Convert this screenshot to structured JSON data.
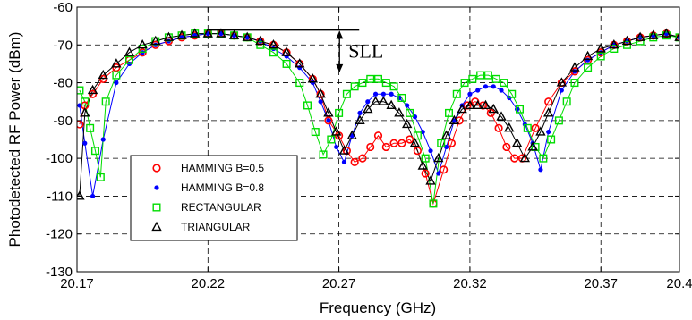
{
  "chart_data": {
    "type": "scatter",
    "title": "",
    "xlabel": "Frequency (GHz)",
    "ylabel": "Photodetected RF Power (dBm)",
    "xlim": [
      20.17,
      20.4
    ],
    "ylim": [
      -130,
      -60
    ],
    "xticks": [
      20.17,
      20.22,
      20.27,
      20.32,
      20.37,
      20.4
    ],
    "xtick_labels": [
      "20.17",
      "20.22",
      "20.27",
      "20.32",
      "20.37",
      "20.4"
    ],
    "yticks": [
      -130,
      -120,
      -110,
      -100,
      -90,
      -80,
      -70,
      -60
    ],
    "ytick_labels": [
      "-130",
      "-120",
      "-110",
      "-100",
      "-90",
      "-80",
      "-70",
      "-60"
    ],
    "grid": true,
    "legend_position": "bottom-left",
    "annotation": {
      "text": "SLL",
      "from_y": -66,
      "to_y": -77,
      "ref_line_x": [
        20.22,
        20.275
      ],
      "ref_line_y": -66
    },
    "series": [
      {
        "name": "HAMMING B=0.5",
        "marker": "circle-open",
        "color": "#ff0000",
        "x": [
          20.171,
          20.173,
          20.176,
          20.18,
          20.185,
          20.19,
          20.195,
          20.2,
          20.205,
          20.21,
          20.215,
          20.22,
          20.225,
          20.23,
          20.235,
          20.24,
          20.245,
          20.25,
          20.255,
          20.26,
          20.263,
          20.266,
          20.27,
          20.273,
          20.276,
          20.279,
          20.282,
          20.285,
          20.288,
          20.291,
          20.294,
          20.297,
          20.3,
          20.303,
          20.306,
          20.31,
          20.313,
          20.316,
          20.319,
          20.322,
          20.325,
          20.328,
          20.331,
          20.334,
          20.337,
          20.34,
          20.345,
          20.35,
          20.355,
          20.36,
          20.365,
          20.37,
          20.375,
          20.38,
          20.385,
          20.39,
          20.395,
          20.4
        ],
        "values": [
          -91,
          -86,
          -83,
          -79,
          -76,
          -74,
          -72,
          -70,
          -69,
          -68,
          -67.5,
          -67,
          -67,
          -67.5,
          -68,
          -69,
          -70,
          -72,
          -75,
          -79,
          -83,
          -90,
          -94,
          -98,
          -101,
          -100,
          -97,
          -94,
          -97,
          -96,
          -96,
          -95,
          -98,
          -104,
          -112,
          -103,
          -96,
          -90,
          -86,
          -85,
          -86,
          -88,
          -92,
          -97,
          -100,
          -100,
          -92,
          -85,
          -80,
          -77,
          -74,
          -72,
          -70,
          -69,
          -68,
          -67.5,
          -67,
          -68
        ]
      },
      {
        "name": "HAMMING B=0.8",
        "marker": "dot",
        "color": "#0000ff",
        "x": [
          20.171,
          20.173,
          20.176,
          20.18,
          20.185,
          20.19,
          20.195,
          20.2,
          20.205,
          20.21,
          20.215,
          20.22,
          20.225,
          20.23,
          20.235,
          20.24,
          20.245,
          20.25,
          20.255,
          20.26,
          20.263,
          20.266,
          20.269,
          20.272,
          20.275,
          20.278,
          20.281,
          20.284,
          20.287,
          20.29,
          20.293,
          20.296,
          20.299,
          20.302,
          20.305,
          20.308,
          20.311,
          20.314,
          20.317,
          20.32,
          20.323,
          20.326,
          20.329,
          20.332,
          20.335,
          20.338,
          20.341,
          20.344,
          20.347,
          20.35,
          20.355,
          20.36,
          20.365,
          20.37,
          20.375,
          20.38,
          20.385,
          20.39,
          20.395,
          20.4
        ],
        "values": [
          -86,
          -96,
          -110,
          -95,
          -80,
          -75,
          -72,
          -70,
          -69,
          -68,
          -67.5,
          -67,
          -67,
          -67.5,
          -68,
          -69,
          -71,
          -73,
          -76,
          -80,
          -85,
          -90,
          -97,
          -101,
          -94,
          -88,
          -85,
          -83,
          -83,
          -83,
          -84,
          -86,
          -89,
          -93,
          -98,
          -104,
          -97,
          -90,
          -86,
          -83,
          -82,
          -81,
          -81,
          -82,
          -84,
          -87,
          -91,
          -96,
          -103,
          -93,
          -82,
          -77,
          -74,
          -72,
          -70,
          -69,
          -68,
          -67.5,
          -67,
          -68
        ]
      },
      {
        "name": "RECTANGULAR",
        "marker": "square-open",
        "color": "#00dd00",
        "x": [
          20.171,
          20.173,
          20.175,
          20.177,
          20.179,
          20.181,
          20.185,
          20.19,
          20.195,
          20.2,
          20.205,
          20.21,
          20.215,
          20.22,
          20.225,
          20.23,
          20.235,
          20.24,
          20.245,
          20.25,
          20.255,
          20.258,
          20.261,
          20.264,
          20.267,
          20.27,
          20.273,
          20.276,
          20.279,
          20.282,
          20.285,
          20.288,
          20.291,
          20.294,
          20.297,
          20.3,
          20.303,
          20.306,
          20.309,
          20.312,
          20.315,
          20.318,
          20.321,
          20.324,
          20.327,
          20.33,
          20.333,
          20.336,
          20.339,
          20.342,
          20.345,
          20.348,
          20.351,
          20.354,
          20.357,
          20.36,
          20.365,
          20.37,
          20.375,
          20.38,
          20.385,
          20.39,
          20.395,
          20.4
        ],
        "values": [
          -82,
          -85,
          -92,
          -98,
          -105,
          -85,
          -78,
          -74,
          -71,
          -69,
          -68,
          -67.5,
          -67,
          -67,
          -67,
          -67.5,
          -68,
          -70,
          -72,
          -75,
          -80,
          -86,
          -93,
          -99,
          -95,
          -88,
          -83,
          -81,
          -80,
          -79,
          -79,
          -80,
          -81,
          -84,
          -88,
          -94,
          -100,
          -112,
          -96,
          -88,
          -83,
          -80,
          -79,
          -78,
          -78,
          -79,
          -80,
          -83,
          -87,
          -92,
          -97,
          -100,
          -95,
          -90,
          -85,
          -80,
          -76,
          -73,
          -71,
          -70,
          -69,
          -68,
          -67.5,
          -68
        ]
      },
      {
        "name": "TRIANGULAR",
        "marker": "triangle-open",
        "color": "#000000",
        "x": [
          20.171,
          20.173,
          20.176,
          20.18,
          20.185,
          20.19,
          20.195,
          20.2,
          20.205,
          20.21,
          20.215,
          20.22,
          20.225,
          20.23,
          20.235,
          20.24,
          20.245,
          20.25,
          20.255,
          20.26,
          20.263,
          20.266,
          20.269,
          20.272,
          20.275,
          20.278,
          20.281,
          20.284,
          20.287,
          20.29,
          20.293,
          20.296,
          20.299,
          20.302,
          20.305,
          20.308,
          20.311,
          20.314,
          20.317,
          20.32,
          20.323,
          20.326,
          20.329,
          20.332,
          20.335,
          20.338,
          20.341,
          20.344,
          20.347,
          20.35,
          20.355,
          20.36,
          20.365,
          20.37,
          20.375,
          20.38,
          20.385,
          20.39,
          20.395,
          20.4
        ],
        "values": [
          -110,
          -88,
          -82,
          -78,
          -75,
          -72,
          -70,
          -69,
          -68,
          -67.5,
          -67,
          -67,
          -67,
          -67.5,
          -68,
          -69,
          -70,
          -72,
          -75,
          -79,
          -83,
          -88,
          -93,
          -98,
          -94,
          -90,
          -87,
          -85,
          -85,
          -86,
          -88,
          -91,
          -96,
          -102,
          -106,
          -100,
          -94,
          -90,
          -87,
          -86,
          -86,
          -86,
          -87,
          -89,
          -92,
          -96,
          -100,
          -97,
          -93,
          -88,
          -80,
          -76,
          -73,
          -71,
          -70,
          -69,
          -68,
          -67.5,
          -67,
          -68
        ]
      }
    ]
  }
}
